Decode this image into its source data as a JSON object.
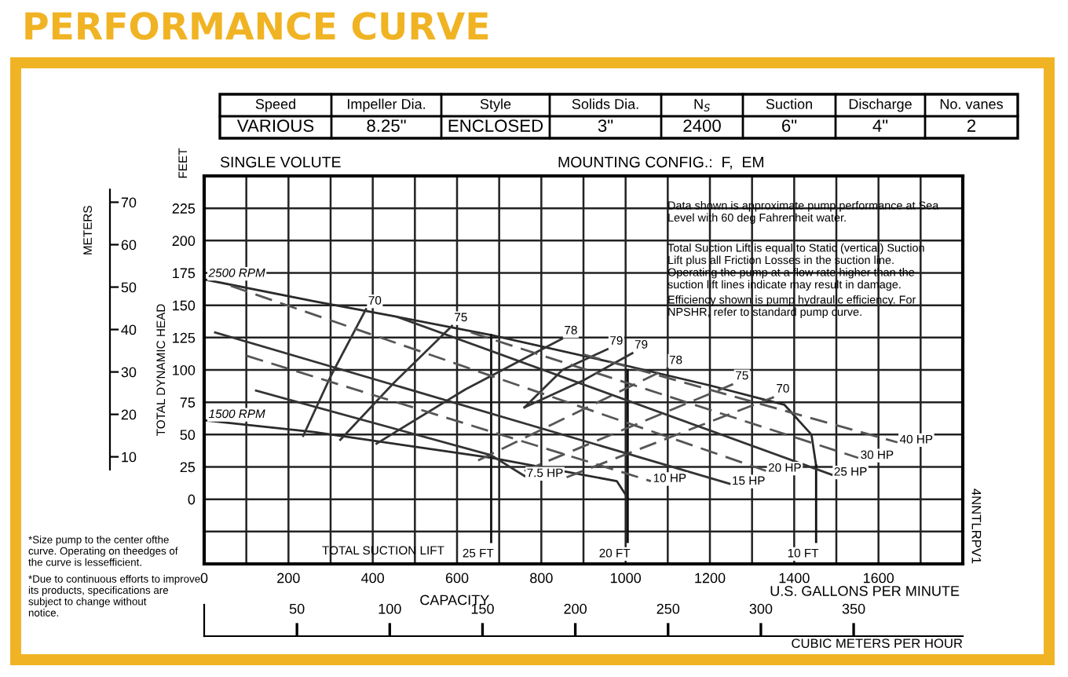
{
  "chart_data": {
    "type": "line",
    "title": "PERFORMANCE CURVE",
    "xlabel": "CAPACITY",
    "ylabel": "TOTAL DYNAMIC HEAD",
    "y2label": "METERS",
    "x2label": "CUBIC METERS PER HOUR",
    "xlim": [
      0,
      1800
    ],
    "xticks": [
      0,
      {
        "value": 100,
        "label": null
      },
      200,
      {
        "value": 300,
        "label": null
      },
      400,
      {
        "value": 500,
        "label": null
      },
      600,
      {
        "value": 700,
        "label": null
      },
      800,
      {
        "value": 900,
        "label": null
      },
      1000,
      {
        "value": 1100,
        "label": null
      },
      1200,
      {
        "value": 1300,
        "label": null
      },
      1400,
      {
        "value": 1500,
        "label": null
      },
      1600,
      {
        "value": 1700,
        "label": null
      }
    ],
    "ylim": [
      -50,
      250
    ],
    "yticks": [
      {
        "value": -25,
        "label": null
      },
      0,
      25,
      50,
      75,
      100,
      125,
      150,
      175,
      200,
      225
    ],
    "y2lim": [
      -15.24,
      76.2
    ],
    "y2ticks": [
      10,
      20,
      30,
      40,
      50,
      60,
      70
    ],
    "x2lim": [
      0,
      408.8
    ],
    "x2ticks": [
      50,
      100,
      150,
      200,
      250,
      300,
      350
    ],
    "grid": true,
    "legend": false,
    "marker": "none",
    "series": [
      {
        "name": "2500 RPM",
        "color": "#2a2a2a",
        "line_style": "solid",
        "x": [
          1452,
          1441,
          1377,
          1200,
          979,
          681,
          458,
          261,
          0
        ],
        "values": [
          26,
          50,
          73,
          88,
          105,
          127,
          141,
          153,
          170
        ]
      },
      {
        "name": "1500 RPM",
        "color": "#2a2a2a",
        "line_style": "solid",
        "x": [
          1005,
          979,
          681,
          261,
          0
        ],
        "values": [
          1,
          14,
          32,
          52,
          61
        ]
      },
      {
        "name": "25 FT",
        "color": "#111111",
        "line_style": "solid",
        "x": [
          681,
          681
        ],
        "values": [
          127,
          -33
        ]
      },
      {
        "name": "20 FT",
        "color": "#111111",
        "line_style": "solid",
        "x": [
          1005,
          1005
        ],
        "values": [
          100,
          -33
        ]
      },
      {
        "name": "10 FT",
        "color": "#111111",
        "line_style": "solid",
        "x": [
          1452,
          1452
        ],
        "values": [
          26,
          -33
        ]
      },
      {
        "name": "70",
        "color": "#333333",
        "line_style": "solid",
        "x": [
          235,
          300,
          384
        ],
        "values": [
          49,
          95,
          147
        ]
      },
      {
        "name": "75",
        "color": "#333333",
        "line_style": "solid",
        "x": [
          323,
          450,
          588
        ],
        "values": [
          46,
          90,
          134
        ]
      },
      {
        "name": "78",
        "color": "#333333",
        "line_style": "solid",
        "x": [
          409,
          620,
          849
        ],
        "values": [
          43,
          85,
          124
        ]
      },
      {
        "name": "79",
        "color": "#333333",
        "line_style": "solid",
        "x": [
          760,
          850,
          957
        ],
        "values": [
          71,
          100,
          116
        ]
      },
      {
        "name": "79",
        "color": "#333333",
        "line_style": "solid",
        "x": [
          760,
          900,
          1016
        ],
        "values": [
          71,
          92,
          113
        ]
      },
      {
        "name": "78",
        "color": "#555555",
        "line_style": "dashed",
        "x": [
          650,
          1098
        ],
        "values": [
          30,
          101
        ]
      },
      {
        "name": "75",
        "color": "#555555",
        "line_style": "dashed",
        "x": [
          760,
          1255
        ],
        "values": [
          22,
          89
        ]
      },
      {
        "name": "70",
        "color": "#555555",
        "line_style": "dashed",
        "x": [
          860,
          1352
        ],
        "values": [
          17,
          79
        ]
      },
      {
        "name": "7.5 HP",
        "color": "#333333",
        "line_style": "solid",
        "x": [
          123,
          681,
          760
        ],
        "values": [
          84,
          34,
          18
        ]
      },
      {
        "name": "10 HP",
        "color": "#555555",
        "line_style": "dashed",
        "x": [
          100,
          1060
        ],
        "values": [
          111,
          14
        ]
      },
      {
        "name": "15 HP",
        "color": "#333333",
        "line_style": "solid",
        "x": [
          26,
          1247
        ],
        "values": [
          129,
          12
        ]
      },
      {
        "name": "20 HP",
        "color": "#555555",
        "line_style": "dashed",
        "x": [
          63,
          1333
        ],
        "values": [
          165,
          22
        ]
      },
      {
        "name": "25 HP",
        "color": "#333333",
        "line_style": "solid",
        "x": [
          458,
          1489
        ],
        "values": [
          141,
          19
        ]
      },
      {
        "name": "30 HP",
        "color": "#555555",
        "line_style": "dashed",
        "x": [
          633,
          1552
        ],
        "values": [
          129,
          32
        ]
      },
      {
        "name": "40 HP",
        "color": "#555555",
        "line_style": "dashed",
        "x": [
          900,
          1645
        ],
        "values": [
          112,
          44
        ]
      }
    ],
    "annotations": [
      "Speed",
      "Impeller Dia.",
      "Style",
      "Solids Dia.",
      "N$_{S}$",
      "Suction",
      "Discharge",
      "No. vanes",
      "VARIOUS",
      "8.25\"",
      "ENCLOSED",
      "3\"",
      "2400",
      "6\"",
      "4\"",
      "2",
      "SINGLE VOLUTE",
      "MOUNTING CONFIG.:  F,  EM",
      "FEET",
      "U.S. GALLONS PER MINUTE",
      "TOTAL SUCTION LIFT",
      "Data shown is approximate pump performance at Sea\nLevel with 60 deg Fahrenheit water.",
      "Total Suction Lift is equal to Static (vertical) Suction\nLift plus all Friction Losses in the suction line.\nOperating the pump at a flow rate higher than the\nsuction lift lines indicate may result in damage.",
      "Efficiency shown is pump hydraulic efficiency. For\nNPSHR, refer to standard pump curve.",
      "4NNTLRPV1",
      "*Size pump to the center ofthe\ncurve. Operating on theedges of\nthe curve is lessefficient.",
      "*Due to continuous efforts to improve\nits products, specifications are\nsubject to change without\nnotice."
    ]
  }
}
